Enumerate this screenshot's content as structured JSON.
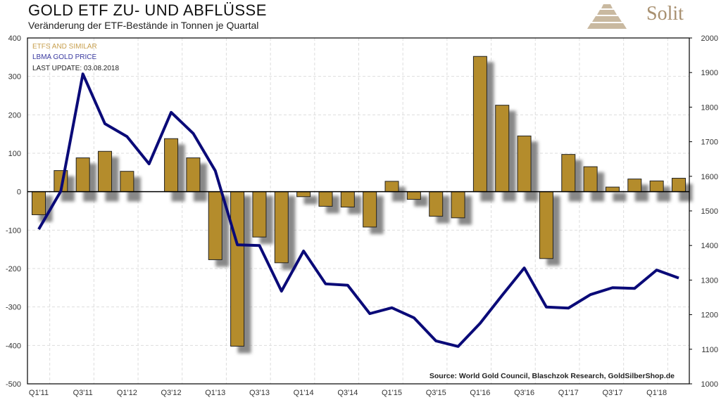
{
  "title": "GOLD ETF ZU- UND ABFLÜSSE",
  "subtitle": "Veränderung der ETF-Bestände in Tonnen je Quartal",
  "logo_text": "Solit",
  "colors": {
    "bar": "#b48c2c",
    "line": "#0a0a78",
    "legend_bar": "#c8a050",
    "legend_line": "#3a3aa0"
  },
  "chart_data": {
    "type": "bar",
    "title": "GOLD ETF ZU- UND ABFLÜSSE",
    "categories": [
      "Q1'11",
      "Q2'11",
      "Q3'11",
      "Q4'11",
      "Q1'12",
      "Q2'12",
      "Q3'12",
      "Q4'12",
      "Q1'13",
      "Q2'13",
      "Q3'13",
      "Q4'13",
      "Q1'14",
      "Q2'14",
      "Q3'14",
      "Q4'14",
      "Q1'15",
      "Q2'15",
      "Q3'15",
      "Q4'15",
      "Q1'16",
      "Q2'16",
      "Q3'16",
      "Q4'16",
      "Q1'17",
      "Q2'17",
      "Q3'17",
      "Q4'17",
      "Q1'18",
      "Q2'18"
    ],
    "tick_labels": [
      "Q1'11",
      "Q3'11",
      "Q1'12",
      "Q3'12",
      "Q1'13",
      "Q3'13",
      "Q1'14",
      "Q3'14",
      "Q1'15",
      "Q3'15",
      "Q1'16",
      "Q3'16",
      "Q1'17",
      "Q3'17",
      "Q1'18"
    ],
    "series": [
      {
        "name": "ETFS AND SIMILAR",
        "axis": "left",
        "type": "bar",
        "values": [
          -60,
          55,
          88,
          105,
          53,
          0,
          138,
          88,
          -177,
          -402,
          -118,
          -185,
          -13,
          -38,
          -40,
          -92,
          27,
          -20,
          -64,
          -68,
          352,
          225,
          145,
          -174,
          97,
          65,
          12,
          33,
          28,
          35
        ]
      },
      {
        "name": "LBMA GOLD PRICE",
        "axis": "right",
        "type": "line",
        "values": [
          1447,
          1557,
          1896,
          1752,
          1715,
          1636,
          1785,
          1724,
          1616,
          1402,
          1400,
          1268,
          1384,
          1289,
          1285,
          1203,
          1220,
          1191,
          1124,
          1108,
          1175,
          1256,
          1335,
          1222,
          1219,
          1258,
          1278,
          1276,
          1329,
          1306
        ]
      }
    ],
    "ylim": [
      -500,
      400
    ],
    "y_ticks": [
      400,
      300,
      200,
      100,
      0,
      -100,
      -200,
      -300,
      -400,
      -500
    ],
    "y2lim": [
      1000,
      2000
    ],
    "y2_ticks": [
      2000,
      1900,
      1800,
      1700,
      1600,
      1500,
      1400,
      1300,
      1200,
      1100,
      1000
    ],
    "legend": [
      "ETFS AND SIMILAR",
      "LBMA GOLD PRICE",
      "LAST UPDATE: 03.08.2018"
    ],
    "legend_placement": "top-left",
    "source": "Source: World Gold Council, Blaschzok Research, GoldSilberShop.de",
    "grid": true
  }
}
